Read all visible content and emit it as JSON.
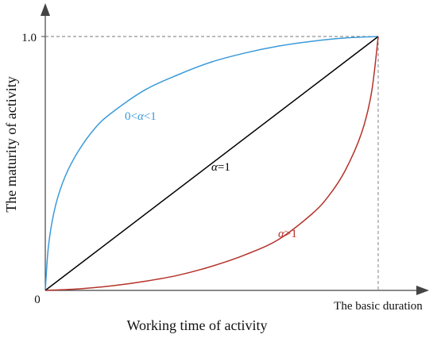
{
  "chart_data": {
    "type": "line",
    "xlabel": "Working time of activity",
    "ylabel": "The maturity of activity",
    "x_end_label": "The basic duration",
    "y_tick_label": "1.0",
    "origin_label": "0",
    "xlim": [
      0,
      1
    ],
    "ylim": [
      0,
      1
    ],
    "grid": false,
    "series": [
      {
        "name": "0<α<1",
        "label_parts": [
          "0<",
          "α",
          "<1"
        ],
        "color": "#3a9ad9",
        "x": [
          0,
          0.01,
          0.03,
          0.06,
          0.1,
          0.15,
          0.2,
          0.3,
          0.4,
          0.5,
          0.6,
          0.7,
          0.8,
          0.9,
          1.0
        ],
        "y": [
          0,
          0.18,
          0.33,
          0.45,
          0.55,
          0.64,
          0.7,
          0.79,
          0.85,
          0.9,
          0.935,
          0.962,
          0.981,
          0.994,
          1.0
        ]
      },
      {
        "name": "α=1",
        "label_parts": [
          "",
          "α",
          "=1"
        ],
        "color": "#000000",
        "x": [
          0,
          1
        ],
        "y": [
          0,
          1
        ]
      },
      {
        "name": "α>1",
        "label_parts": [
          "",
          "α",
          ">1"
        ],
        "color": "#b5322a",
        "x": [
          0,
          0.1,
          0.2,
          0.3,
          0.4,
          0.5,
          0.6,
          0.7,
          0.8,
          0.85,
          0.9,
          0.95,
          0.98,
          1.0
        ],
        "y": [
          0,
          0.006,
          0.018,
          0.036,
          0.06,
          0.095,
          0.14,
          0.2,
          0.3,
          0.37,
          0.47,
          0.62,
          0.78,
          1.0
        ]
      }
    ],
    "reference_lines": "dashed lines at y=1.0 and x=basic duration"
  }
}
